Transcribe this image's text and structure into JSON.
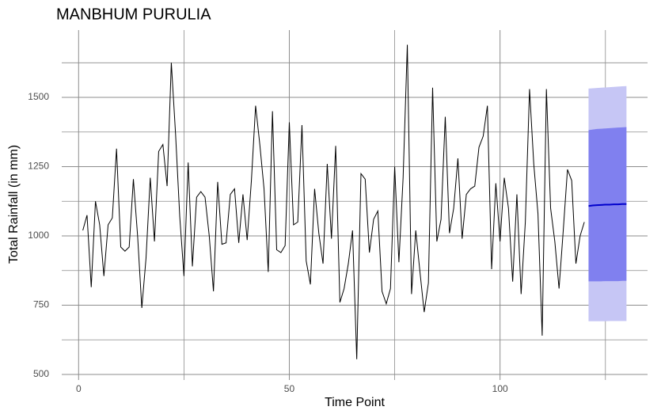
{
  "chart_data": {
    "type": "line",
    "title": "MANBHUM PURULIA",
    "x_label": "Time Point",
    "y_label": "Total Rainfall (in mm)",
    "x": [
      1,
      2,
      3,
      4,
      5,
      6,
      7,
      8,
      9,
      10,
      11,
      12,
      13,
      14,
      15,
      16,
      17,
      18,
      19,
      20,
      21,
      22,
      23,
      24,
      25,
      26,
      27,
      28,
      29,
      30,
      31,
      32,
      33,
      34,
      35,
      36,
      37,
      38,
      39,
      40,
      41,
      42,
      43,
      44,
      45,
      46,
      47,
      48,
      49,
      50,
      51,
      52,
      53,
      54,
      55,
      56,
      57,
      58,
      59,
      60,
      61,
      62,
      63,
      64,
      65,
      66,
      67,
      68,
      69,
      70,
      71,
      72,
      73,
      74,
      75,
      76,
      77,
      78,
      79,
      80,
      81,
      82,
      83,
      84,
      85,
      86,
      87,
      88,
      89,
      90,
      91,
      92,
      93,
      94,
      95,
      96,
      97,
      98,
      99,
      100,
      101,
      102,
      103,
      104,
      105,
      106,
      107,
      108,
      109,
      110,
      111,
      112,
      113,
      114,
      115,
      116,
      117,
      118,
      119,
      120
    ],
    "series": [
      {
        "color": "#000000",
        "values": [
          1020,
          1075,
          815,
          1125,
          1040,
          855,
          1040,
          1065,
          1315,
          960,
          945,
          960,
          1205,
          1000,
          740,
          920,
          1210,
          980,
          1305,
          1330,
          1180,
          1625,
          1370,
          1070,
          855,
          1265,
          890,
          1140,
          1160,
          1140,
          1000,
          800,
          1195,
          970,
          975,
          1150,
          1170,
          975,
          1150,
          985,
          1200,
          1470,
          1330,
          1170,
          870,
          1450,
          950,
          940,
          965,
          1410,
          1040,
          1050,
          1400,
          910,
          825,
          1170,
          1010,
          900,
          1260,
          990,
          1325,
          760,
          810,
          900,
          1020,
          555,
          1225,
          1205,
          940,
          1060,
          1090,
          800,
          755,
          810,
          1250,
          905,
          1210,
          1690,
          790,
          1020,
          870,
          725,
          830,
          1535,
          980,
          1060,
          1430,
          1010,
          1100,
          1280,
          990,
          1150,
          1170,
          1180,
          1320,
          1360,
          1470,
          880,
          1190,
          980,
          1210,
          1100,
          835,
          1150,
          790,
          1050,
          1530,
          1260,
          1080,
          640,
          1530,
          1100,
          980,
          810,
          1020,
          1240,
          1200,
          900,
          1000,
          1050
        ]
      }
    ],
    "forecast": {
      "x": [
        121,
        122,
        123,
        124,
        125,
        126,
        127,
        128,
        129,
        130
      ],
      "mean": [
        1108,
        1110,
        1111,
        1112,
        1113,
        1113,
        1114,
        1114,
        1115,
        1115
      ],
      "lo80": [
        836,
        836,
        836,
        836,
        837,
        837,
        837,
        837,
        838,
        838
      ],
      "hi80": [
        1382,
        1384,
        1386,
        1387,
        1388,
        1389,
        1390,
        1391,
        1392,
        1393
      ],
      "lo95": [
        692,
        692,
        692,
        692,
        692,
        693,
        693,
        693,
        693,
        693
      ],
      "hi95": [
        1532,
        1533,
        1534,
        1535,
        1536,
        1537,
        1538,
        1539,
        1540,
        1541
      ],
      "mean_color": "#0000cc",
      "band80_color": "#8080ef",
      "band95_color": "#c6c6f5"
    },
    "xlim": [
      -4,
      135
    ],
    "xticks": [
      0,
      50,
      100
    ],
    "x_minor_grid": [
      25,
      75,
      125
    ],
    "ylim": [
      480,
      1743
    ],
    "yticks": [
      500,
      750,
      1000,
      1250,
      1500
    ],
    "y_minor_grid": [
      625,
      875,
      1125,
      1375,
      1625
    ],
    "grid": true,
    "grid_color": "#8c8c8c"
  }
}
